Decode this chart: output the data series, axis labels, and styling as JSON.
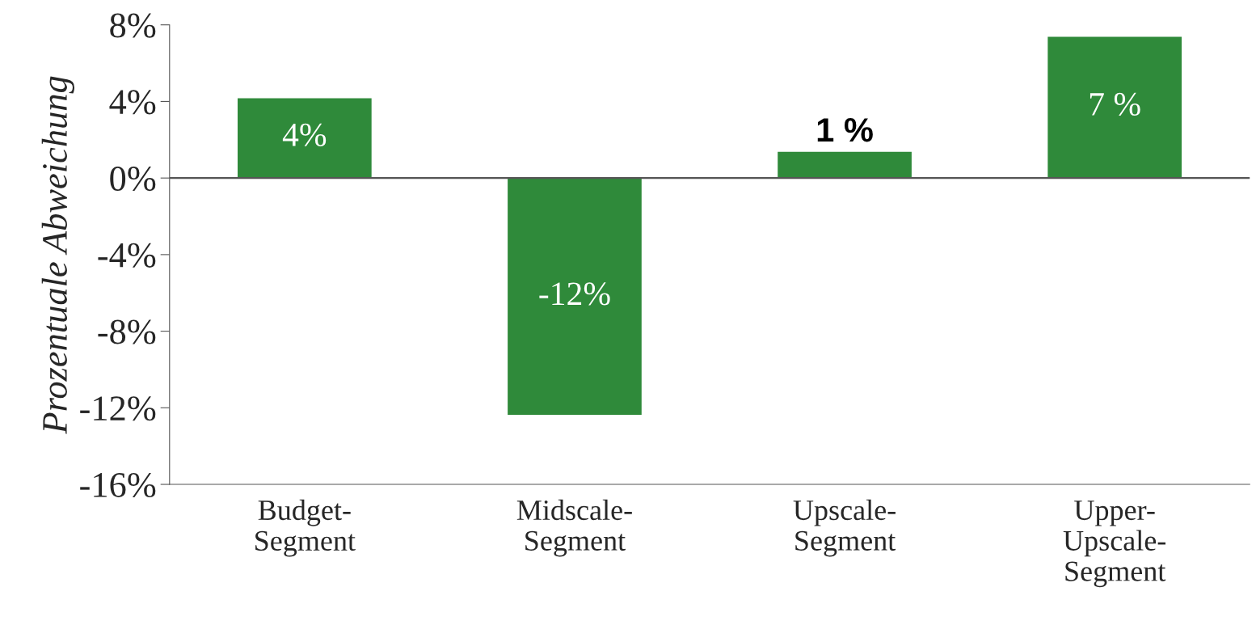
{
  "chart_data": {
    "type": "bar",
    "ylabel": "Prozentuale Abweichung",
    "categories": [
      "Budget-\nSegment",
      "Midscale-\nSegment",
      "Upscale-\nSegment",
      "Upper-\nUpscale-\nSegment"
    ],
    "values": [
      4.2,
      -12.4,
      1.4,
      7.4
    ],
    "value_labels": [
      "4%",
      "-12%",
      "1 %",
      "7 %"
    ],
    "color": "#2f8a3a",
    "ylim": [
      -16,
      8
    ],
    "yticks": [
      {
        "value": -16,
        "label": "-16%"
      },
      {
        "value": -12,
        "label": "-12%"
      },
      {
        "value": -8,
        "label": "-8%"
      },
      {
        "value": -4,
        "label": "-4%"
      },
      {
        "value": 0,
        "label": "0%"
      },
      {
        "value": 4,
        "label": "4%"
      },
      {
        "value": 8,
        "label": "8%"
      }
    ],
    "ref_lines": [
      {
        "axis": "y",
        "value": 0,
        "color": "#555555"
      }
    ]
  }
}
